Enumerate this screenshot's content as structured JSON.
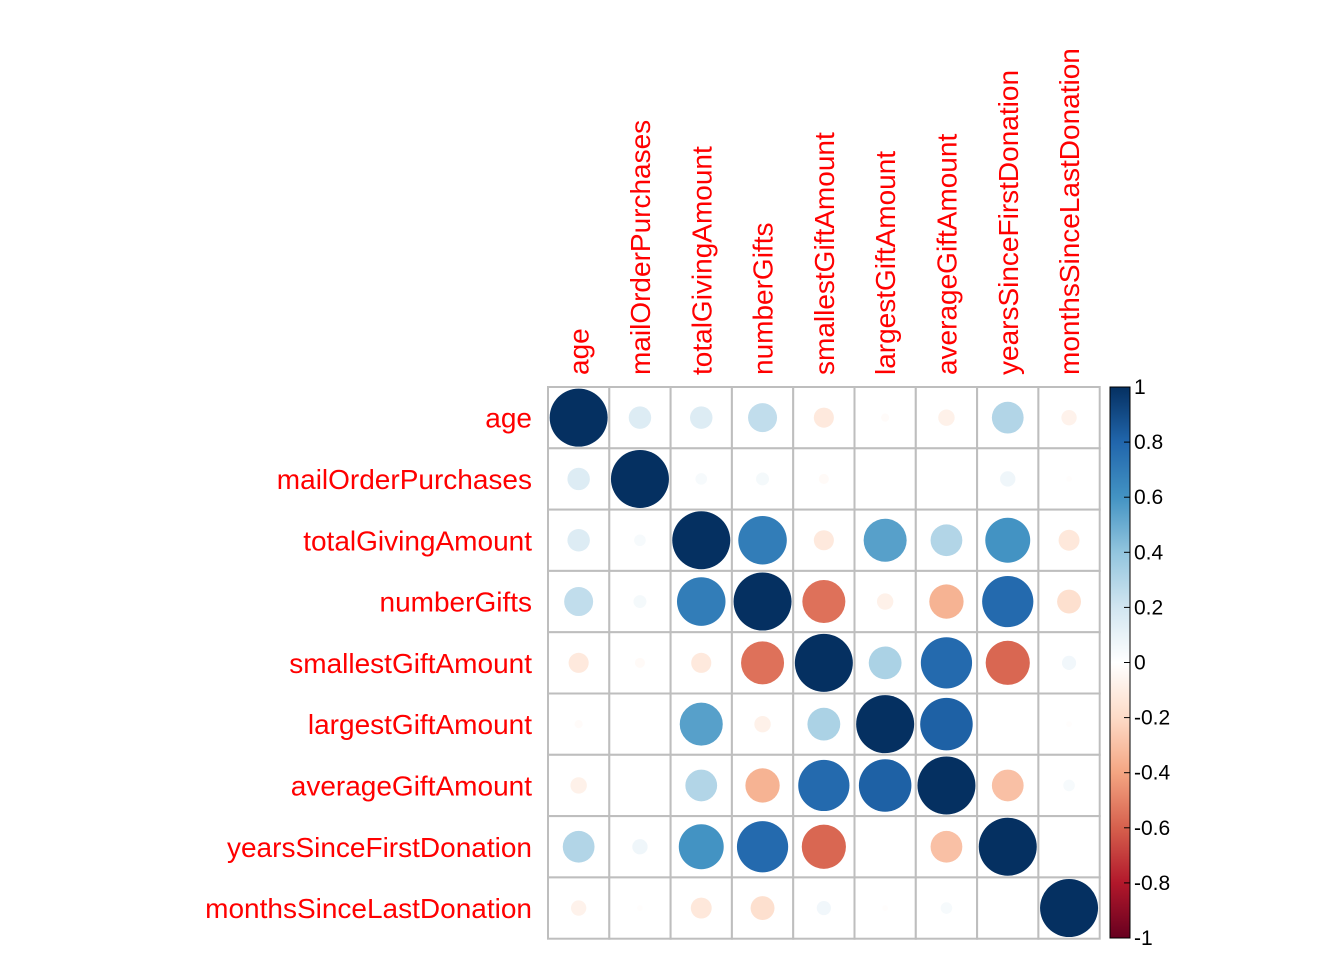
{
  "chart_data": {
    "type": "heatmap",
    "style": "circle correlation matrix",
    "title": "",
    "variables": [
      "age",
      "mailOrderPurchases",
      "totalGivingAmount",
      "numberGifts",
      "smallestGiftAmount",
      "largestGiftAmount",
      "averageGiftAmount",
      "yearsSinceFirstDonation",
      "monthsSinceLastDonation"
    ],
    "matrix": [
      [
        1.0,
        0.15,
        0.15,
        0.25,
        -0.12,
        -0.02,
        -0.08,
        0.3,
        -0.07
      ],
      [
        0.15,
        1.0,
        0.04,
        0.05,
        -0.03,
        0.0,
        0.0,
        0.07,
        -0.01
      ],
      [
        0.15,
        0.04,
        1.0,
        0.7,
        -0.12,
        0.55,
        0.3,
        0.6,
        -0.13
      ],
      [
        0.25,
        0.05,
        0.7,
        1.0,
        -0.55,
        -0.08,
        -0.35,
        0.78,
        -0.17
      ],
      [
        -0.12,
        -0.03,
        -0.12,
        -0.55,
        1.0,
        0.32,
        0.78,
        -0.58,
        0.06
      ],
      [
        -0.02,
        0.0,
        0.55,
        -0.08,
        0.32,
        1.0,
        0.82,
        0.0,
        -0.01
      ],
      [
        -0.08,
        0.0,
        0.3,
        -0.35,
        0.78,
        0.82,
        1.0,
        -0.3,
        0.04
      ],
      [
        0.3,
        0.07,
        0.6,
        0.78,
        -0.58,
        0.0,
        -0.3,
        1.0,
        0.0
      ],
      [
        -0.07,
        -0.01,
        -0.13,
        -0.17,
        0.06,
        -0.01,
        0.04,
        0.0,
        1.0
      ]
    ],
    "color_range": [
      -1,
      1
    ],
    "colorbar_ticks": [
      "1",
      "0.8",
      "0.6",
      "0.4",
      "0.2",
      "0",
      "-0.2",
      "-0.4",
      "-0.6",
      "-0.8",
      "-1"
    ],
    "colors": {
      "label": "#ff0000",
      "grid": "#bebebe",
      "scale": [
        "#67001f",
        "#b2182b",
        "#d6604d",
        "#f4a582",
        "#fddbc7",
        "#ffffff",
        "#d1e5f0",
        "#92c5de",
        "#4393c3",
        "#2166ac",
        "#053061"
      ]
    },
    "legend": "right",
    "grid": true
  }
}
